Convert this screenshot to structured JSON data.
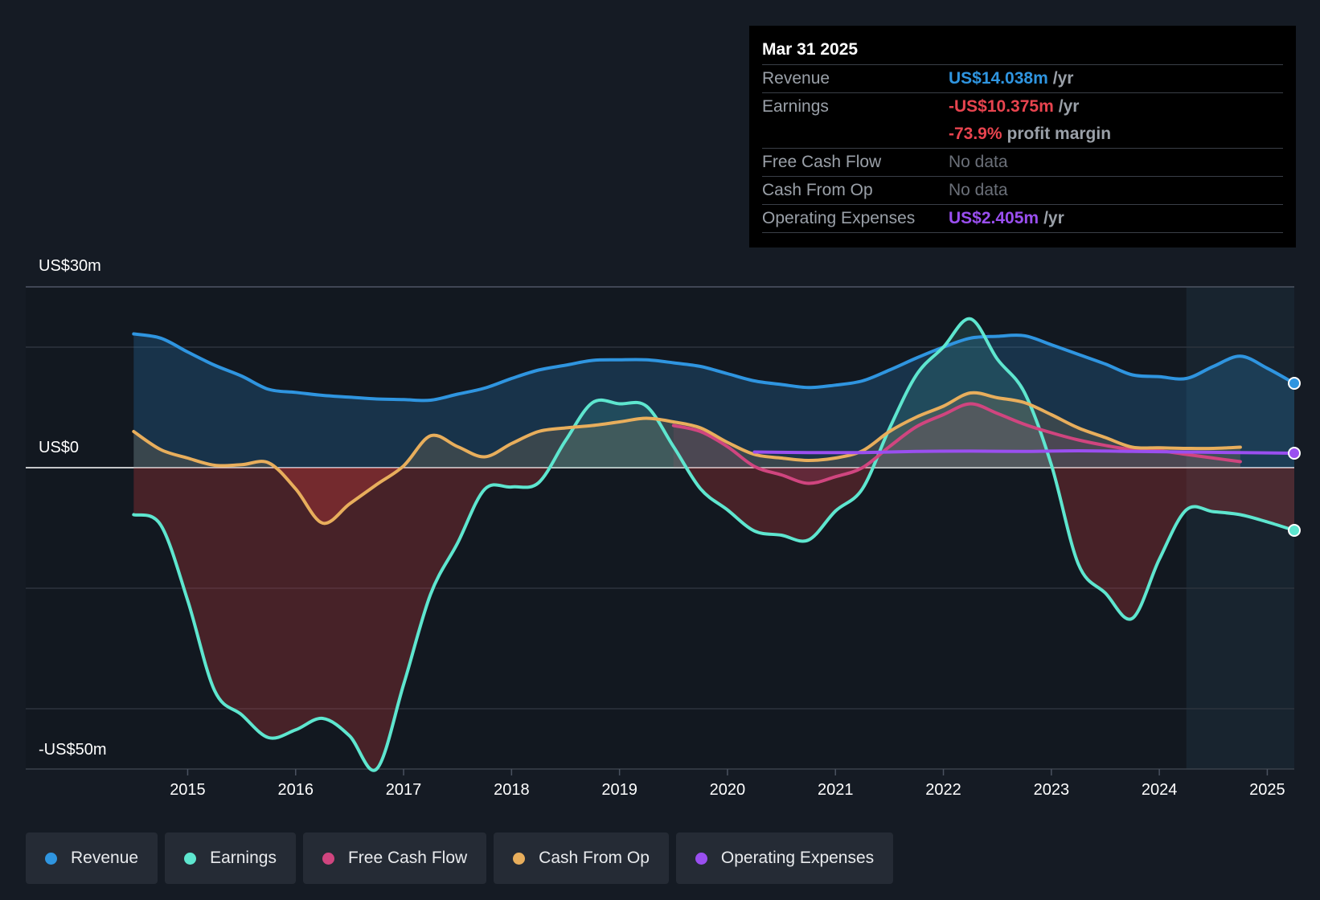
{
  "tooltip": {
    "date": "Mar 31 2025",
    "rows": {
      "revenue": {
        "label": "Revenue",
        "value": "US$14.038m",
        "unit": "/yr"
      },
      "earnings": {
        "label": "Earnings",
        "value": "-US$10.375m",
        "unit": "/yr"
      },
      "margin": {
        "value": "-73.9%",
        "unit": "profit margin"
      },
      "fcf": {
        "label": "Free Cash Flow",
        "value": "No data"
      },
      "cfo": {
        "label": "Cash From Op",
        "value": "No data"
      },
      "opex": {
        "label": "Operating Expenses",
        "value": "US$2.405m",
        "unit": "/yr"
      }
    }
  },
  "chart_data": {
    "type": "line",
    "ylim": [
      -50,
      30
    ],
    "xlim": [
      2013.5,
      2025.25
    ],
    "y_tick_labels": {
      "top": "US$30m",
      "zero": "US$0",
      "bottom": "-US$50m"
    },
    "x_ticks": [
      2015,
      2016,
      2017,
      2018,
      2019,
      2020,
      2021,
      2022,
      2023,
      2024,
      2025
    ],
    "forecast_start": 2024.25,
    "series": [
      {
        "name": "Revenue",
        "color": "#2f95e0",
        "points": [
          [
            2014.5,
            22.2
          ],
          [
            2014.75,
            21.5
          ],
          [
            2015.0,
            19.2
          ],
          [
            2015.25,
            17
          ],
          [
            2015.5,
            15.2
          ],
          [
            2015.75,
            13.0
          ],
          [
            2016.0,
            12.5
          ],
          [
            2016.25,
            12.0
          ],
          [
            2016.5,
            11.7
          ],
          [
            2016.75,
            11.4
          ],
          [
            2017.0,
            11.3
          ],
          [
            2017.25,
            11.2
          ],
          [
            2017.5,
            12.2
          ],
          [
            2017.75,
            13.2
          ],
          [
            2018.0,
            14.8
          ],
          [
            2018.25,
            16.2
          ],
          [
            2018.5,
            17.0
          ],
          [
            2018.75,
            17.8
          ],
          [
            2019.0,
            17.9
          ],
          [
            2019.25,
            17.9
          ],
          [
            2019.5,
            17.4
          ],
          [
            2019.75,
            16.8
          ],
          [
            2020.0,
            15.6
          ],
          [
            2020.25,
            14.4
          ],
          [
            2020.5,
            13.8
          ],
          [
            2020.75,
            13.3
          ],
          [
            2021.0,
            13.7
          ],
          [
            2021.25,
            14.4
          ],
          [
            2021.5,
            16.2
          ],
          [
            2021.75,
            18.2
          ],
          [
            2022.0,
            20.0
          ],
          [
            2022.25,
            21.5
          ],
          [
            2022.5,
            21.8
          ],
          [
            2022.75,
            21.9
          ],
          [
            2023.0,
            20.4
          ],
          [
            2023.25,
            18.8
          ],
          [
            2023.5,
            17.2
          ],
          [
            2023.75,
            15.4
          ],
          [
            2024.0,
            15.1
          ],
          [
            2024.25,
            14.8
          ],
          [
            2024.5,
            16.8
          ],
          [
            2024.75,
            18.5
          ],
          [
            2025.0,
            16.5
          ],
          [
            2025.25,
            14.0
          ]
        ]
      },
      {
        "name": "Earnings",
        "color": "#5ee6cf",
        "points": [
          [
            2014.5,
            -7.8
          ],
          [
            2014.75,
            -9.5
          ],
          [
            2015.0,
            -22
          ],
          [
            2015.25,
            -37
          ],
          [
            2015.5,
            -41
          ],
          [
            2015.75,
            -44.8
          ],
          [
            2016.0,
            -43.5
          ],
          [
            2016.25,
            -41.6
          ],
          [
            2016.5,
            -44.5
          ],
          [
            2016.75,
            -50
          ],
          [
            2017.0,
            -36
          ],
          [
            2017.25,
            -21
          ],
          [
            2017.5,
            -12.5
          ],
          [
            2017.75,
            -3.6
          ],
          [
            2018.0,
            -3.2
          ],
          [
            2018.25,
            -2.5
          ],
          [
            2018.5,
            4.5
          ],
          [
            2018.75,
            10.8
          ],
          [
            2019.0,
            10.6
          ],
          [
            2019.25,
            10.2
          ],
          [
            2019.5,
            3.5
          ],
          [
            2019.75,
            -3.5
          ],
          [
            2020.0,
            -7.0
          ],
          [
            2020.25,
            -10.5
          ],
          [
            2020.5,
            -11.2
          ],
          [
            2020.75,
            -12.0
          ],
          [
            2021.0,
            -7.2
          ],
          [
            2021.25,
            -3.5
          ],
          [
            2021.5,
            6.5
          ],
          [
            2021.75,
            15.4
          ],
          [
            2022.0,
            20.0
          ],
          [
            2022.25,
            24.7
          ],
          [
            2022.5,
            18.0
          ],
          [
            2022.75,
            12.5
          ],
          [
            2023.0,
            0.5
          ],
          [
            2023.25,
            -16.0
          ],
          [
            2023.5,
            -20.8
          ],
          [
            2023.75,
            -25.0
          ],
          [
            2024.0,
            -15.2
          ],
          [
            2024.25,
            -7.0
          ],
          [
            2024.5,
            -7.3
          ],
          [
            2024.75,
            -7.8
          ],
          [
            2025.0,
            -9.0
          ],
          [
            2025.25,
            -10.4
          ]
        ]
      },
      {
        "name": "Free Cash Flow",
        "color": "#d0457f",
        "points": [
          [
            2019.5,
            7.0
          ],
          [
            2019.75,
            6.0
          ],
          [
            2020.0,
            3.5
          ],
          [
            2020.25,
            0.2
          ],
          [
            2020.5,
            -1.2
          ],
          [
            2020.75,
            -2.6
          ],
          [
            2021.0,
            -1.5
          ],
          [
            2021.25,
            0.0
          ],
          [
            2021.5,
            3.5
          ],
          [
            2021.75,
            6.8
          ],
          [
            2022.0,
            8.8
          ],
          [
            2022.25,
            10.6
          ],
          [
            2022.5,
            9.0
          ],
          [
            2022.75,
            7.2
          ],
          [
            2023.0,
            5.8
          ],
          [
            2023.25,
            4.6
          ],
          [
            2023.5,
            3.7
          ],
          [
            2023.75,
            3.0
          ],
          [
            2024.0,
            2.8
          ],
          [
            2024.25,
            2.2
          ],
          [
            2024.5,
            1.6
          ],
          [
            2024.75,
            1.0
          ]
        ]
      },
      {
        "name": "Cash From Op",
        "color": "#e8ae5c",
        "points": [
          [
            2014.5,
            6.0
          ],
          [
            2014.75,
            3.0
          ],
          [
            2015.0,
            1.6
          ],
          [
            2015.25,
            0.4
          ],
          [
            2015.5,
            0.5
          ],
          [
            2015.75,
            0.8
          ],
          [
            2016.0,
            -3.5
          ],
          [
            2016.25,
            -9.2
          ],
          [
            2016.5,
            -6.0
          ],
          [
            2016.75,
            -2.8
          ],
          [
            2017.0,
            0.3
          ],
          [
            2017.25,
            5.3
          ],
          [
            2017.5,
            3.5
          ],
          [
            2017.75,
            1.8
          ],
          [
            2018.0,
            4.0
          ],
          [
            2018.25,
            6.0
          ],
          [
            2018.5,
            6.6
          ],
          [
            2018.75,
            7.0
          ],
          [
            2019.0,
            7.6
          ],
          [
            2019.25,
            8.2
          ],
          [
            2019.5,
            7.6
          ],
          [
            2019.75,
            6.6
          ],
          [
            2020.0,
            4.2
          ],
          [
            2020.25,
            2.2
          ],
          [
            2020.5,
            1.6
          ],
          [
            2020.75,
            1.2
          ],
          [
            2021.0,
            1.6
          ],
          [
            2021.25,
            2.8
          ],
          [
            2021.5,
            6.0
          ],
          [
            2021.75,
            8.4
          ],
          [
            2022.0,
            10.2
          ],
          [
            2022.25,
            12.4
          ],
          [
            2022.5,
            11.6
          ],
          [
            2022.75,
            10.8
          ],
          [
            2023.0,
            8.8
          ],
          [
            2023.25,
            6.6
          ],
          [
            2023.5,
            5.0
          ],
          [
            2023.75,
            3.4
          ],
          [
            2024.0,
            3.3
          ],
          [
            2024.25,
            3.2
          ],
          [
            2024.5,
            3.2
          ],
          [
            2024.75,
            3.4
          ]
        ]
      },
      {
        "name": "Operating Expenses",
        "color": "#9a4ff0",
        "points": [
          [
            2020.25,
            2.6
          ],
          [
            2020.75,
            2.5
          ],
          [
            2021.25,
            2.5
          ],
          [
            2021.75,
            2.7
          ],
          [
            2022.25,
            2.75
          ],
          [
            2022.75,
            2.7
          ],
          [
            2023.25,
            2.8
          ],
          [
            2023.75,
            2.7
          ],
          [
            2024.25,
            2.6
          ],
          [
            2024.75,
            2.5
          ],
          [
            2025.25,
            2.4
          ]
        ]
      }
    ]
  },
  "x_labels": [
    "2015",
    "2016",
    "2017",
    "2018",
    "2019",
    "2020",
    "2021",
    "2022",
    "2023",
    "2024",
    "2025"
  ],
  "legend": [
    {
      "label": "Revenue",
      "color": "#2f95e0"
    },
    {
      "label": "Earnings",
      "color": "#5ee6cf"
    },
    {
      "label": "Free Cash Flow",
      "color": "#d0457f"
    },
    {
      "label": "Cash From Op",
      "color": "#e8ae5c"
    },
    {
      "label": "Operating Expenses",
      "color": "#9a4ff0"
    }
  ]
}
